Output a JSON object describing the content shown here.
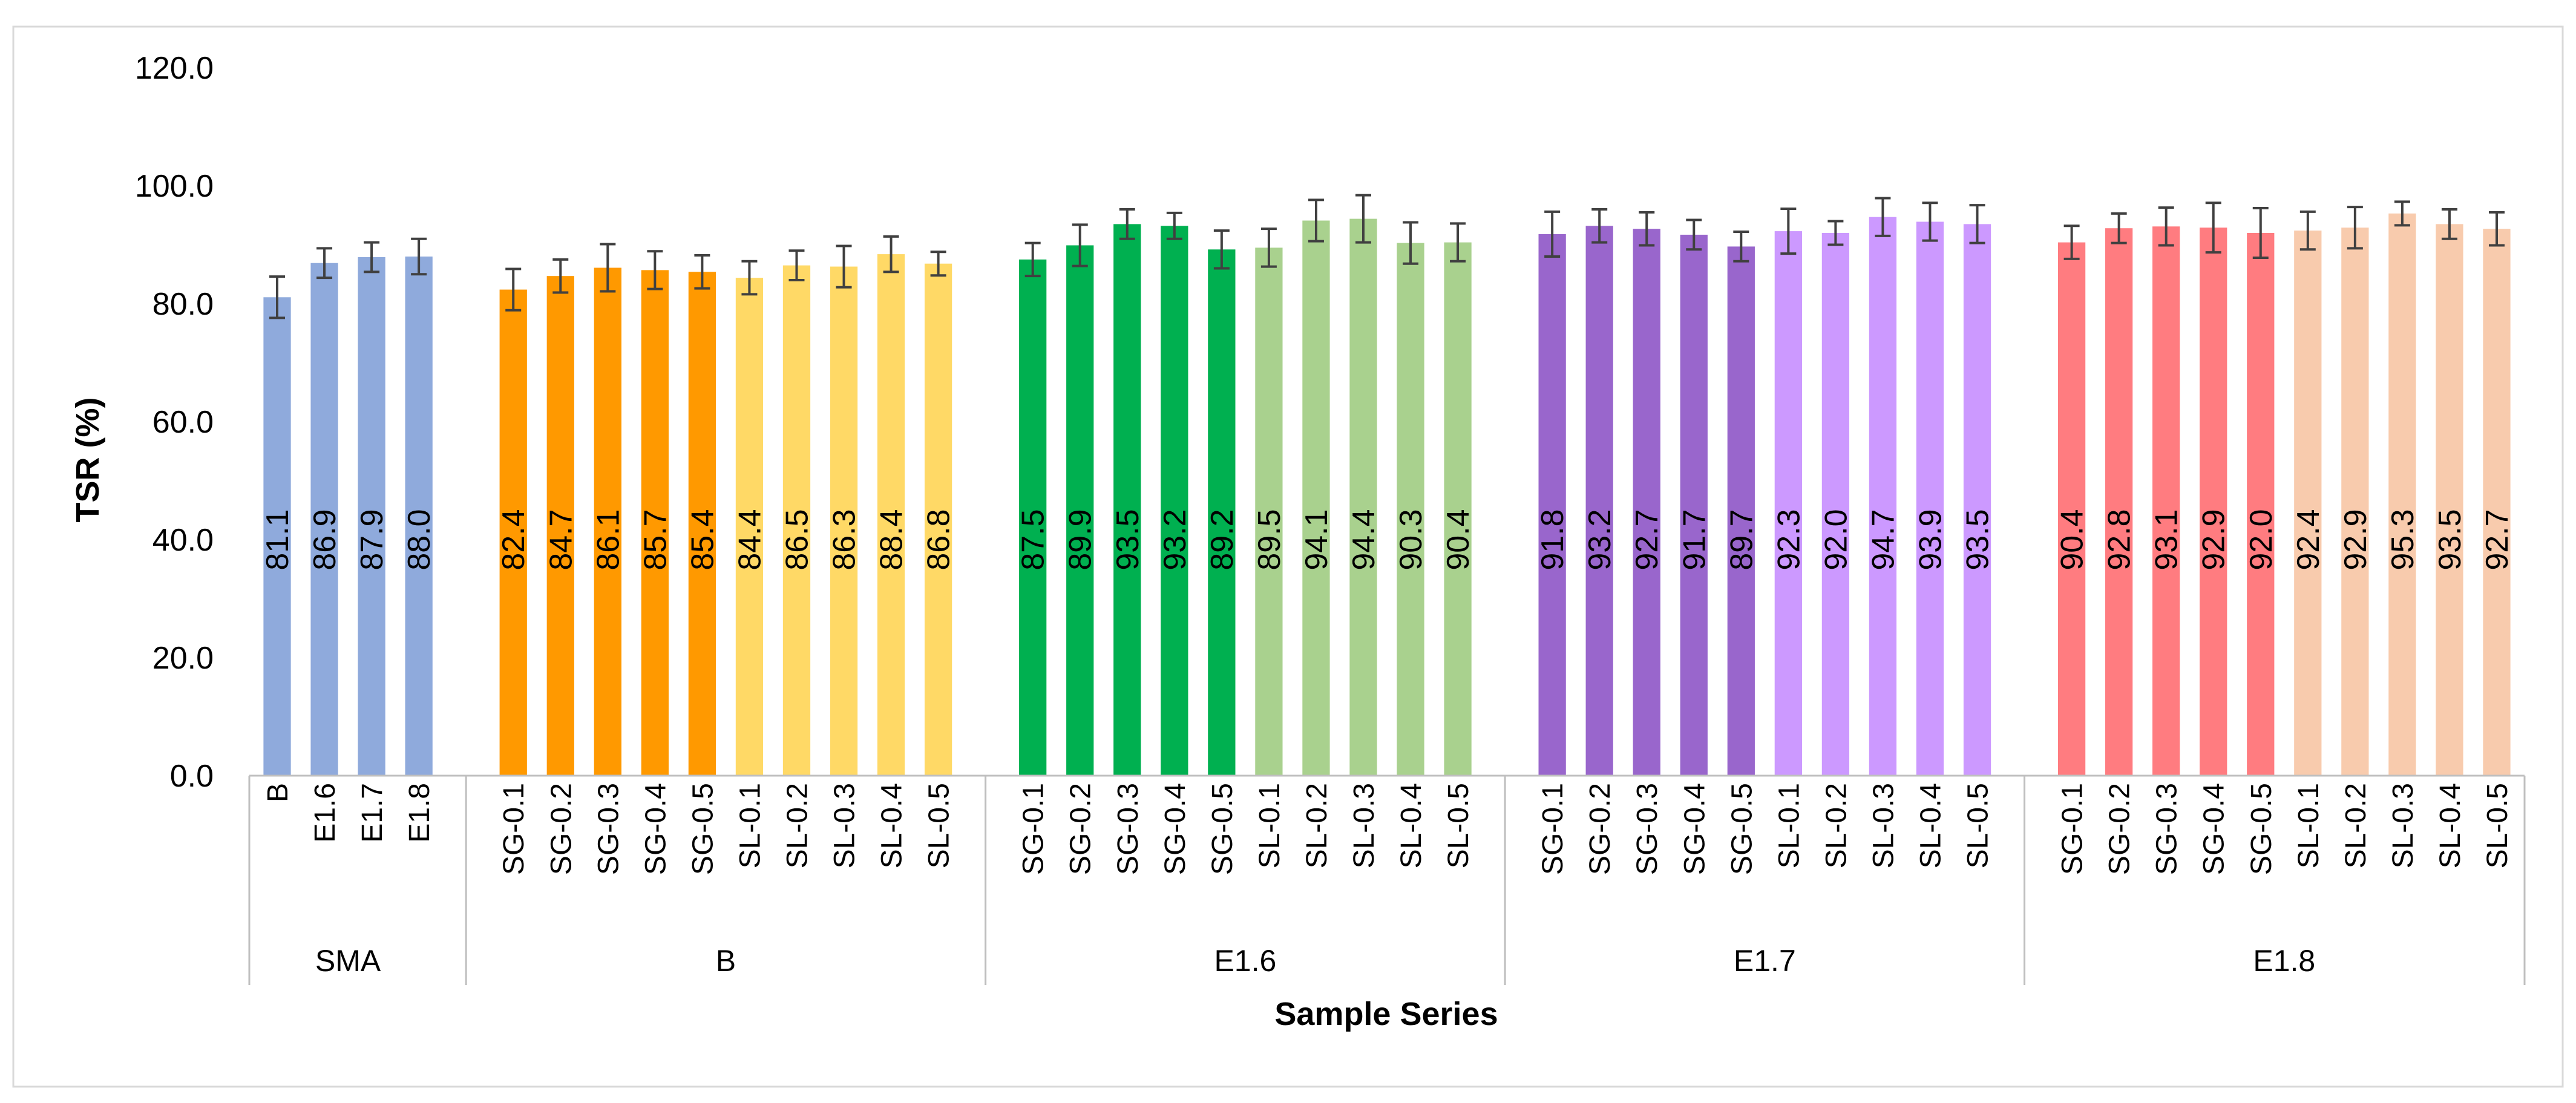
{
  "chart_data": {
    "type": "bar",
    "title": "",
    "xlabel": "Sample Series",
    "ylabel": "TSR (%)",
    "ylim": [
      0,
      120
    ],
    "yticks": [
      "0.0",
      "20.0",
      "40.0",
      "60.0",
      "80.0",
      "100.0",
      "120.0"
    ],
    "grid": false,
    "legend": "none",
    "groups": [
      {
        "name": "SMA",
        "categories": [
          "B",
          "E1.6",
          "E1.7",
          "E1.8"
        ],
        "values": [
          81.1,
          86.9,
          87.9,
          88.0
        ],
        "value_labels": [
          "81.1",
          "86.9",
          "87.9",
          "88.0"
        ],
        "errors": [
          3.5,
          2.5,
          2.5,
          3.0
        ],
        "colors": [
          "#8faadc",
          "#8faadc",
          "#8faadc",
          "#8faadc"
        ]
      },
      {
        "name": "B",
        "categories": [
          "SG-0.1",
          "SG-0.2",
          "SG-0.3",
          "SG-0.4",
          "SG-0.5",
          "SL-0.1",
          "SL-0.2",
          "SL-0.3",
          "SL-0.4",
          "SL-0.5"
        ],
        "values": [
          82.4,
          84.7,
          86.1,
          85.7,
          85.4,
          84.4,
          86.5,
          86.3,
          88.4,
          86.8
        ],
        "value_labels": [
          "82.4",
          "84.7",
          "86.1",
          "85.7",
          "85.4",
          "84.4",
          "86.5",
          "86.3",
          "88.4",
          "86.8"
        ],
        "errors": [
          3.5,
          2.8,
          4.0,
          3.2,
          2.8,
          2.8,
          2.5,
          3.5,
          3.0,
          2.0
        ],
        "colors": [
          "#ff9900",
          "#ff9900",
          "#ff9900",
          "#ff9900",
          "#ff9900",
          "#ffd966",
          "#ffd966",
          "#ffd966",
          "#ffd966",
          "#ffd966"
        ]
      },
      {
        "name": "E1.6",
        "categories": [
          "SG-0.1",
          "SG-0.2",
          "SG-0.3",
          "SG-0.4",
          "SG-0.5",
          "SL-0.1",
          "SL-0.2",
          "SL-0.3",
          "SL-0.4",
          "SL-0.5"
        ],
        "values": [
          87.5,
          89.9,
          93.5,
          93.2,
          89.2,
          89.5,
          94.1,
          94.4,
          90.3,
          90.4
        ],
        "value_labels": [
          "87.5",
          "89.9",
          "93.5",
          "93.2",
          "89.2",
          "89.5",
          "94.1",
          "94.4",
          "90.3",
          "90.4"
        ],
        "errors": [
          2.8,
          3.5,
          2.5,
          2.2,
          3.2,
          3.2,
          3.5,
          4.0,
          3.5,
          3.2
        ],
        "colors": [
          "#00b050",
          "#00b050",
          "#00b050",
          "#00b050",
          "#00b050",
          "#a9d18e",
          "#a9d18e",
          "#a9d18e",
          "#a9d18e",
          "#a9d18e"
        ]
      },
      {
        "name": "E1.7",
        "categories": [
          "SG-0.1",
          "SG-0.2",
          "SG-0.3",
          "SG-0.4",
          "SG-0.5",
          "SL-0.1",
          "SL-0.2",
          "SL-0.3",
          "SL-0.4",
          "SL-0.5"
        ],
        "values": [
          91.8,
          93.2,
          92.7,
          91.7,
          89.7,
          92.3,
          92.0,
          94.7,
          93.9,
          93.5
        ],
        "value_labels": [
          "91.8",
          "93.2",
          "92.7",
          "91.7",
          "89.7",
          "92.3",
          "92.0",
          "94.7",
          "93.9",
          "93.5"
        ],
        "errors": [
          3.8,
          2.8,
          2.8,
          2.5,
          2.5,
          3.8,
          2.0,
          3.2,
          3.2,
          3.2
        ],
        "colors": [
          "#9966cc",
          "#9966cc",
          "#9966cc",
          "#9966cc",
          "#9966cc",
          "#cc99ff",
          "#cc99ff",
          "#cc99ff",
          "#cc99ff",
          "#cc99ff"
        ]
      },
      {
        "name": "E1.8",
        "categories": [
          "SG-0.1",
          "SG-0.2",
          "SG-0.3",
          "SG-0.4",
          "SG-0.5",
          "SL-0.1",
          "SL-0.2",
          "SL-0.3",
          "SL-0.4",
          "SL-0.5"
        ],
        "values": [
          90.4,
          92.8,
          93.1,
          92.9,
          92.0,
          92.4,
          92.9,
          95.3,
          93.5,
          92.7
        ],
        "value_labels": [
          "90.4",
          "92.8",
          "93.1",
          "92.9",
          "92.0",
          "92.4",
          "92.9",
          "95.3",
          "93.5",
          "92.7"
        ],
        "errors": [
          2.8,
          2.5,
          3.2,
          4.2,
          4.2,
          3.2,
          3.5,
          2.0,
          2.5,
          2.8
        ],
        "colors": [
          "#ff7c80",
          "#ff7c80",
          "#ff7c80",
          "#ff7c80",
          "#ff7c80",
          "#f8cbad",
          "#f8cbad",
          "#f8cbad",
          "#f8cbad",
          "#f8cbad"
        ]
      }
    ]
  }
}
